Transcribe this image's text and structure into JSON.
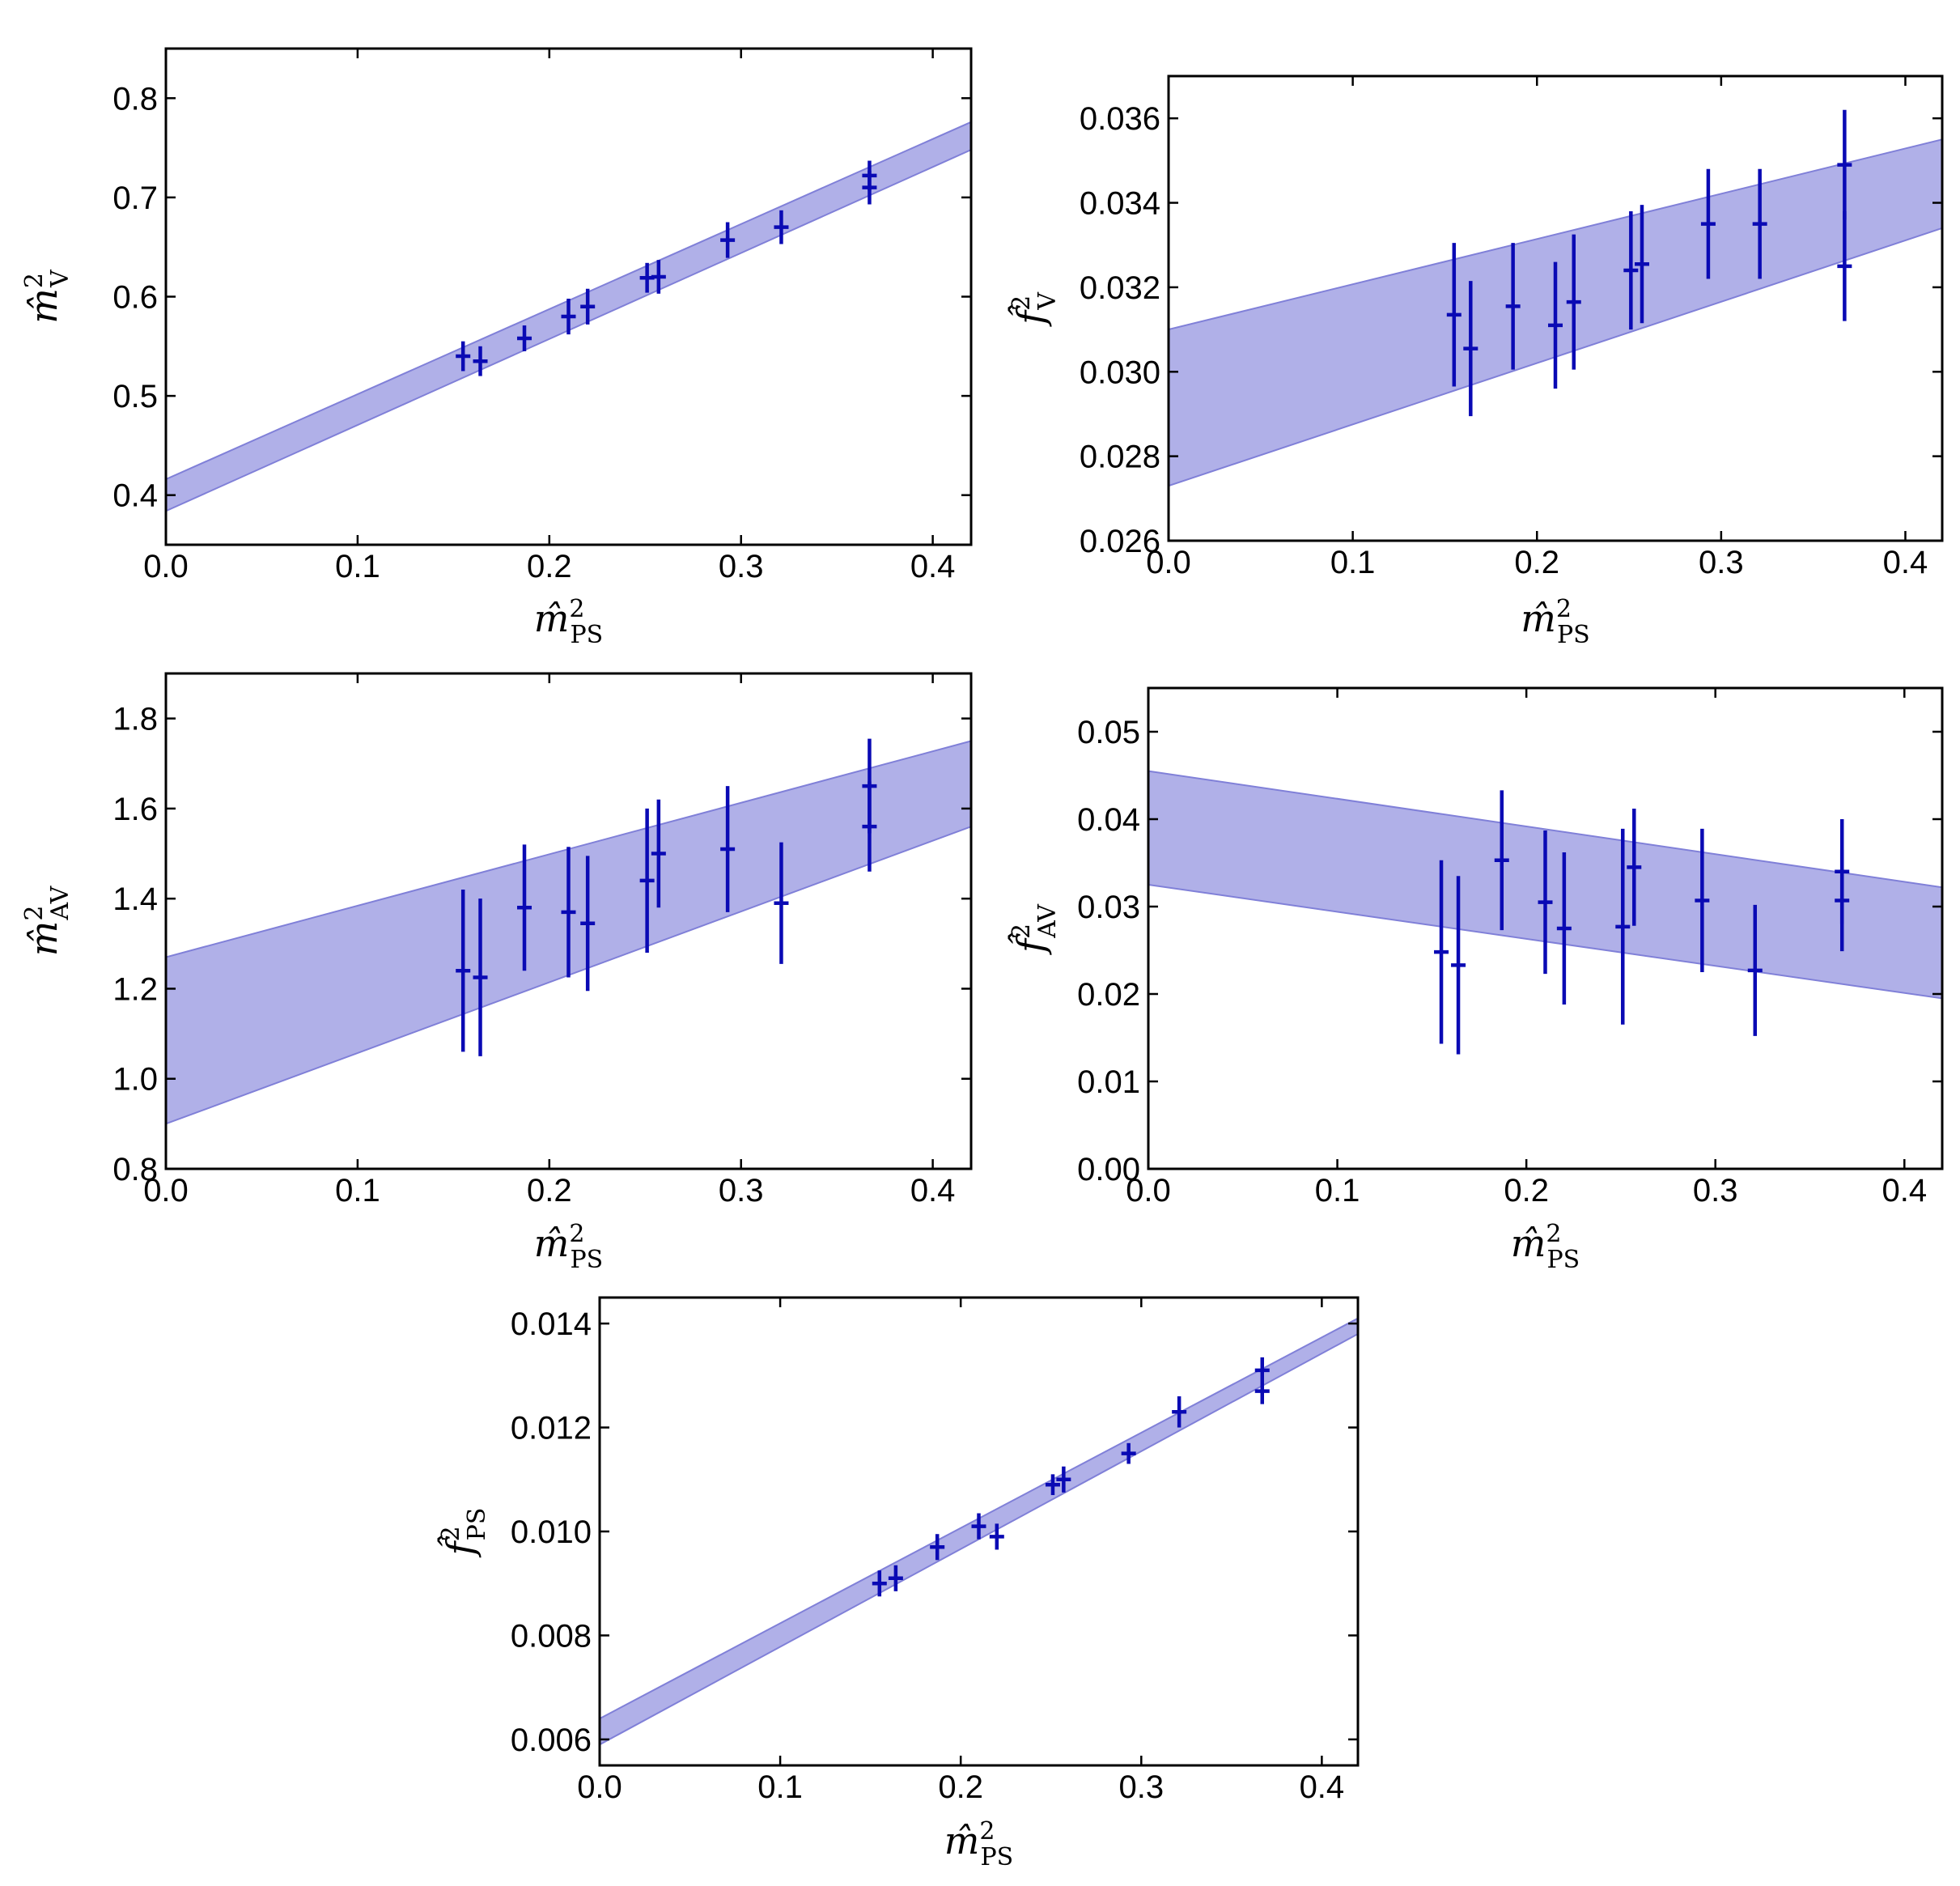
{
  "figure": {
    "band_color": "#b0b0e8",
    "band_edge_color": "#8080d8",
    "point_color": "#0a0ab4"
  },
  "chart_data": [
    {
      "id": "mV",
      "type": "scatter",
      "title": "",
      "xlabel": {
        "base": "m̂",
        "sup": "2",
        "sub": "PS"
      },
      "ylabel": {
        "base": "m̂",
        "sup": "2",
        "sub": "V"
      },
      "xlim": [
        0.0,
        0.42
      ],
      "ylim": [
        0.35,
        0.85
      ],
      "xticks": [
        0.0,
        0.1,
        0.2,
        0.3,
        0.4
      ],
      "xtick_labels": [
        "0.0",
        "0.1",
        "0.2",
        "0.3",
        "0.4"
      ],
      "yticks": [
        0.4,
        0.5,
        0.6,
        0.7,
        0.8
      ],
      "ytick_labels": [
        "0.4",
        "0.5",
        "0.6",
        "0.7",
        "0.8"
      ],
      "band": {
        "x": [
          0.0,
          0.42
        ],
        "upper": [
          0.416,
          0.776
        ],
        "lower": [
          0.384,
          0.748
        ]
      },
      "points": [
        {
          "x": 0.155,
          "y": 0.54,
          "err": 0.015
        },
        {
          "x": 0.164,
          "y": 0.535,
          "err": 0.015
        },
        {
          "x": 0.187,
          "y": 0.558,
          "err": 0.013
        },
        {
          "x": 0.21,
          "y": 0.58,
          "err": 0.018
        },
        {
          "x": 0.22,
          "y": 0.59,
          "err": 0.018
        },
        {
          "x": 0.251,
          "y": 0.619,
          "err": 0.015
        },
        {
          "x": 0.257,
          "y": 0.62,
          "err": 0.017
        },
        {
          "x": 0.293,
          "y": 0.657,
          "err": 0.018
        },
        {
          "x": 0.321,
          "y": 0.67,
          "err": 0.017
        },
        {
          "x": 0.367,
          "y": 0.71,
          "err": 0.017
        },
        {
          "x": 0.367,
          "y": 0.722,
          "err": 0.015
        }
      ]
    },
    {
      "id": "fV",
      "type": "scatter",
      "title": "",
      "xlabel": {
        "base": "m̂",
        "sup": "2",
        "sub": "PS"
      },
      "ylabel": {
        "base": "f̂",
        "sup": "2",
        "sub": "V"
      },
      "xlim": [
        0.0,
        0.42
      ],
      "ylim": [
        0.026,
        0.037
      ],
      "xticks": [
        0.0,
        0.1,
        0.2,
        0.3,
        0.4
      ],
      "xtick_labels": [
        "0.0",
        "0.1",
        "0.2",
        "0.3",
        "0.4"
      ],
      "yticks": [
        0.026,
        0.028,
        0.03,
        0.032,
        0.034,
        0.036
      ],
      "ytick_labels": [
        "0.026",
        "0.028",
        "0.030",
        "0.032",
        "0.034",
        "0.036"
      ],
      "band": {
        "x": [
          0.0,
          0.42
        ],
        "upper": [
          0.031,
          0.0355
        ],
        "lower": [
          0.0273,
          0.0334
        ]
      },
      "points": [
        {
          "x": 0.155,
          "y": 0.03135,
          "err": 0.0017
        },
        {
          "x": 0.164,
          "y": 0.03055,
          "err": 0.0016
        },
        {
          "x": 0.187,
          "y": 0.03155,
          "err": 0.0015
        },
        {
          "x": 0.21,
          "y": 0.0311,
          "err": 0.0015
        },
        {
          "x": 0.22,
          "y": 0.03165,
          "err": 0.0016
        },
        {
          "x": 0.251,
          "y": 0.0324,
          "err": 0.0014
        },
        {
          "x": 0.257,
          "y": 0.03255,
          "err": 0.0014
        },
        {
          "x": 0.293,
          "y": 0.0335,
          "err": 0.0013
        },
        {
          "x": 0.321,
          "y": 0.0335,
          "err": 0.0013
        },
        {
          "x": 0.367,
          "y": 0.0325,
          "err": 0.0013
        },
        {
          "x": 0.367,
          "y": 0.0349,
          "err": 0.0013
        }
      ]
    },
    {
      "id": "mAV",
      "type": "scatter",
      "title": "",
      "xlabel": {
        "base": "m̂",
        "sup": "2",
        "sub": "PS"
      },
      "ylabel": {
        "base": "m̂",
        "sup": "2",
        "sub": "AV"
      },
      "xlim": [
        0.0,
        0.42
      ],
      "ylim": [
        0.8,
        1.9
      ],
      "xticks": [
        0.0,
        0.1,
        0.2,
        0.3,
        0.4
      ],
      "xtick_labels": [
        "0.0",
        "0.1",
        "0.2",
        "0.3",
        "0.4"
      ],
      "yticks": [
        0.8,
        1.0,
        1.2,
        1.4,
        1.6,
        1.8
      ],
      "ytick_labels": [
        "0.8",
        "1.0",
        "1.2",
        "1.4",
        "1.6",
        "1.8"
      ],
      "band": {
        "x": [
          0.0,
          0.42
        ],
        "upper": [
          1.27,
          1.75
        ],
        "lower": [
          0.9,
          1.56
        ]
      },
      "points": [
        {
          "x": 0.155,
          "y": 1.24,
          "err": 0.18
        },
        {
          "x": 0.164,
          "y": 1.225,
          "err": 0.175
        },
        {
          "x": 0.187,
          "y": 1.38,
          "err": 0.14
        },
        {
          "x": 0.21,
          "y": 1.37,
          "err": 0.145
        },
        {
          "x": 0.22,
          "y": 1.345,
          "err": 0.15
        },
        {
          "x": 0.251,
          "y": 1.44,
          "err": 0.16
        },
        {
          "x": 0.257,
          "y": 1.5,
          "err": 0.12
        },
        {
          "x": 0.293,
          "y": 1.51,
          "err": 0.14
        },
        {
          "x": 0.321,
          "y": 1.39,
          "err": 0.135
        },
        {
          "x": 0.367,
          "y": 1.56,
          "err": 0.1
        },
        {
          "x": 0.367,
          "y": 1.65,
          "err": 0.105
        }
      ]
    },
    {
      "id": "fAV",
      "type": "scatter",
      "title": "",
      "xlabel": {
        "base": "m̂",
        "sup": "2",
        "sub": "PS"
      },
      "ylabel": {
        "base": "f̂",
        "sup": "2",
        "sub": "AV"
      },
      "xlim": [
        0.0,
        0.42
      ],
      "ylim": [
        0.0,
        0.055
      ],
      "xticks": [
        0.0,
        0.1,
        0.2,
        0.3,
        0.4
      ],
      "xtick_labels": [
        "0.0",
        "0.1",
        "0.2",
        "0.3",
        "0.4"
      ],
      "yticks": [
        0.0,
        0.01,
        0.02,
        0.03,
        0.04,
        0.05
      ],
      "ytick_labels": [
        "0.00",
        "0.01",
        "0.02",
        "0.03",
        "0.04",
        "0.05"
      ],
      "band": {
        "x": [
          0.0,
          0.42
        ],
        "upper": [
          0.0455,
          0.0322
        ],
        "lower": [
          0.0325,
          0.0195
        ]
      },
      "points": [
        {
          "x": 0.155,
          "y": 0.0248,
          "err": 0.0105
        },
        {
          "x": 0.164,
          "y": 0.0233,
          "err": 0.0102
        },
        {
          "x": 0.187,
          "y": 0.0353,
          "err": 0.008
        },
        {
          "x": 0.21,
          "y": 0.0305,
          "err": 0.0082
        },
        {
          "x": 0.22,
          "y": 0.0275,
          "err": 0.0087
        },
        {
          "x": 0.251,
          "y": 0.0277,
          "err": 0.0112
        },
        {
          "x": 0.257,
          "y": 0.0345,
          "err": 0.0067
        },
        {
          "x": 0.293,
          "y": 0.0307,
          "err": 0.0082
        },
        {
          "x": 0.321,
          "y": 0.0227,
          "err": 0.0075
        },
        {
          "x": 0.367,
          "y": 0.0307,
          "err": 0.0058
        },
        {
          "x": 0.367,
          "y": 0.034,
          "err": 0.006
        }
      ]
    },
    {
      "id": "fPS",
      "type": "scatter",
      "title": "",
      "xlabel": {
        "base": "m̂",
        "sup": "2",
        "sub": "PS"
      },
      "ylabel": {
        "base": "f̂",
        "sup": "2",
        "sub": "PS"
      },
      "xlim": [
        0.0,
        0.42
      ],
      "ylim": [
        0.0055,
        0.0145
      ],
      "xticks": [
        0.0,
        0.1,
        0.2,
        0.3,
        0.4
      ],
      "xtick_labels": [
        "0.0",
        "0.1",
        "0.2",
        "0.3",
        "0.4"
      ],
      "yticks": [
        0.006,
        0.008,
        0.01,
        0.012,
        0.014
      ],
      "ytick_labels": [
        "0.006",
        "0.008",
        "0.010",
        "0.012",
        "0.014"
      ],
      "band": {
        "x": [
          0.0,
          0.42
        ],
        "upper": [
          0.0064,
          0.0141
        ],
        "lower": [
          0.0059,
          0.0138
        ]
      },
      "points": [
        {
          "x": 0.155,
          "y": 0.009,
          "err": 0.00025
        },
        {
          "x": 0.164,
          "y": 0.0091,
          "err": 0.00025
        },
        {
          "x": 0.187,
          "y": 0.0097,
          "err": 0.00025
        },
        {
          "x": 0.21,
          "y": 0.0101,
          "err": 0.00025
        },
        {
          "x": 0.22,
          "y": 0.0099,
          "err": 0.00025
        },
        {
          "x": 0.251,
          "y": 0.0109,
          "err": 0.0002
        },
        {
          "x": 0.257,
          "y": 0.011,
          "err": 0.00025
        },
        {
          "x": 0.293,
          "y": 0.0115,
          "err": 0.0002
        },
        {
          "x": 0.321,
          "y": 0.0123,
          "err": 0.0003
        },
        {
          "x": 0.367,
          "y": 0.0127,
          "err": 0.00025
        },
        {
          "x": 0.367,
          "y": 0.0131,
          "err": 0.00025
        }
      ]
    }
  ]
}
